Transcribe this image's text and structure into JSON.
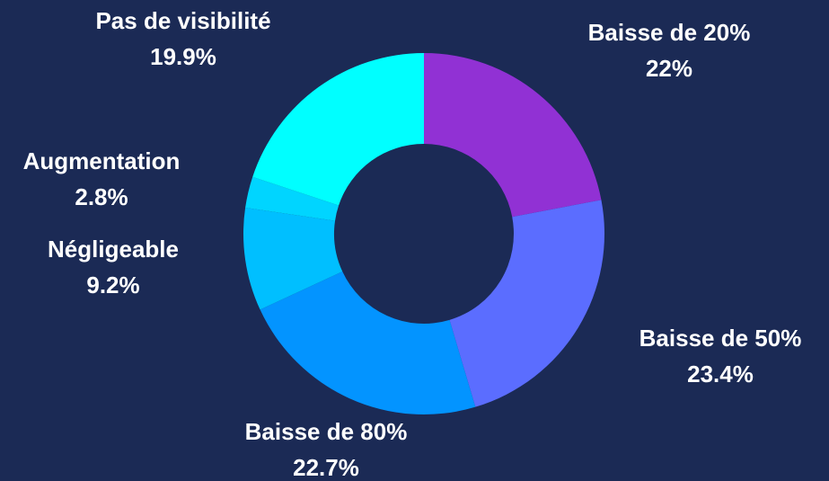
{
  "chart_data": {
    "type": "donut",
    "categories": [
      "Baisse de 20%",
      "Baisse de 50%",
      "Baisse de 80%",
      "Négligeable",
      "Augmentation",
      "Pas de visibilité"
    ],
    "values": [
      22,
      23.4,
      22.7,
      9.2,
      2.8,
      19.9
    ],
    "value_labels": [
      "22%",
      "23.4%",
      "22.7%",
      "9.2%",
      "2.8%",
      "19.9%"
    ],
    "colors": [
      "#9131d4",
      "#5b6dff",
      "#0394ff",
      "#00bfff",
      "#00d5ff",
      "#00ffff"
    ]
  }
}
